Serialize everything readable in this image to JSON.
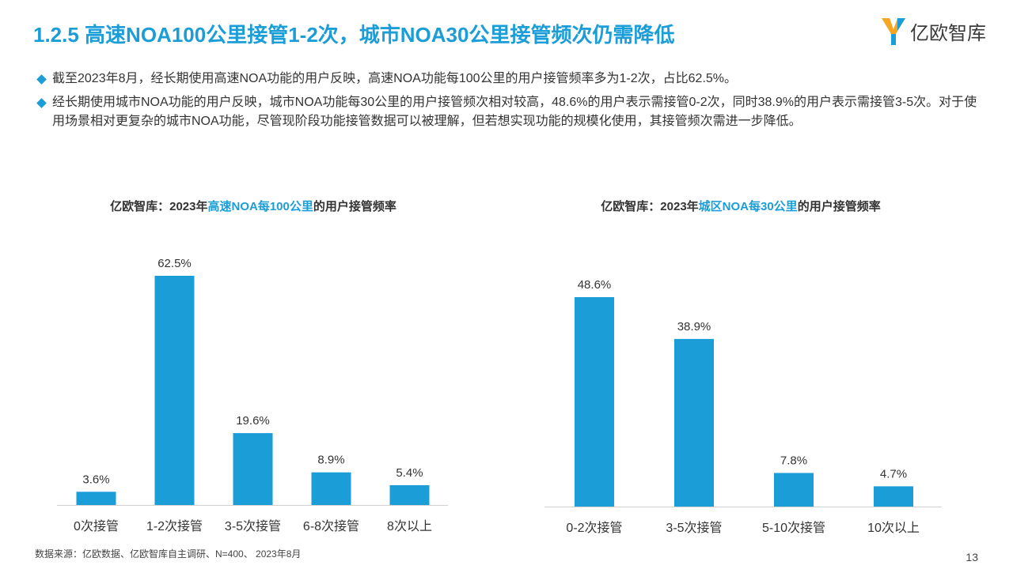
{
  "header": {
    "title": "1.2.5 高速NOA100公里接管1-2次，城市NOA30公里接管频次仍需降低",
    "logo_text": "亿欧智库"
  },
  "bullets": [
    "截至2023年8月，经长期使用高速NOA功能的用户反映，高速NOA功能每100公里的用户接管频率多为1-2次，占比62.5%。",
    "经长期使用城市NOA功能的用户反映，城市NOA功能每30公里的用户接管频次相对较高，48.6%的用户表示需接管0-2次，同时38.9%的用户表示需接管3-5次。对于使用场景相对更复杂的城市NOA功能，尽管现阶段功能接管数据可以被理解，但若想实现功能的规模化使用，其接管频次需进一步降低。"
  ],
  "chart_data": [
    {
      "type": "bar",
      "title_parts": [
        "亿欧智库：2023年",
        "高速NOA每100公里",
        "的用户接管频率"
      ],
      "categories": [
        "0次接管",
        "1-2次接管",
        "3-5次接管",
        "6-8次接管",
        "8次以上"
      ],
      "values": [
        3.6,
        62.5,
        19.6,
        8.9,
        5.4
      ],
      "data_labels": [
        "3.6%",
        "62.5%",
        "19.6%",
        "8.9%",
        "5.4%"
      ],
      "ylim": [
        0,
        62.5
      ],
      "grid": false,
      "bar_color": "#1b9dd8"
    },
    {
      "type": "bar",
      "title_parts": [
        "亿欧智库：2023年",
        "城区NOA每30公里",
        "的用户接管频率"
      ],
      "categories": [
        "0-2次接管",
        "3-5次接管",
        "5-10次接管",
        "10次以上"
      ],
      "values": [
        48.6,
        38.9,
        7.8,
        4.7
      ],
      "data_labels": [
        "48.6%",
        "38.9%",
        "7.8%",
        "4.7%"
      ],
      "ylim": [
        0,
        48.6
      ],
      "grid": false,
      "bar_color": "#1b9dd8"
    }
  ],
  "footer": {
    "source": "数据来源：亿欧数据、亿欧智库自主调研、N=400、 2023年8月",
    "page_number": "13"
  },
  "colors": {
    "accent": "#1b9dd8",
    "text": "#333333"
  }
}
